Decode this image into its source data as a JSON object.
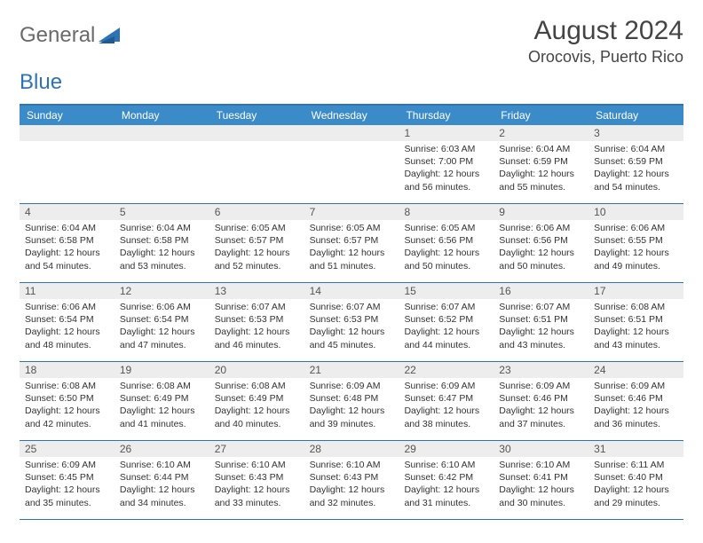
{
  "brand": {
    "general": "General",
    "blue": "Blue"
  },
  "header": {
    "month": "August 2024",
    "location": "Orocovis, Puerto Rico"
  },
  "colors": {
    "accent": "#3b8bc9",
    "border": "#2e74b5",
    "daybar": "#ededed",
    "text": "#333333"
  },
  "dayNames": [
    "Sunday",
    "Monday",
    "Tuesday",
    "Wednesday",
    "Thursday",
    "Friday",
    "Saturday"
  ],
  "weeks": [
    [
      {
        "n": "",
        "sr": "",
        "ss": "",
        "dl": ""
      },
      {
        "n": "",
        "sr": "",
        "ss": "",
        "dl": ""
      },
      {
        "n": "",
        "sr": "",
        "ss": "",
        "dl": ""
      },
      {
        "n": "",
        "sr": "",
        "ss": "",
        "dl": ""
      },
      {
        "n": "1",
        "sr": "Sunrise: 6:03 AM",
        "ss": "Sunset: 7:00 PM",
        "dl": "Daylight: 12 hours and 56 minutes."
      },
      {
        "n": "2",
        "sr": "Sunrise: 6:04 AM",
        "ss": "Sunset: 6:59 PM",
        "dl": "Daylight: 12 hours and 55 minutes."
      },
      {
        "n": "3",
        "sr": "Sunrise: 6:04 AM",
        "ss": "Sunset: 6:59 PM",
        "dl": "Daylight: 12 hours and 54 minutes."
      }
    ],
    [
      {
        "n": "4",
        "sr": "Sunrise: 6:04 AM",
        "ss": "Sunset: 6:58 PM",
        "dl": "Daylight: 12 hours and 54 minutes."
      },
      {
        "n": "5",
        "sr": "Sunrise: 6:04 AM",
        "ss": "Sunset: 6:58 PM",
        "dl": "Daylight: 12 hours and 53 minutes."
      },
      {
        "n": "6",
        "sr": "Sunrise: 6:05 AM",
        "ss": "Sunset: 6:57 PM",
        "dl": "Daylight: 12 hours and 52 minutes."
      },
      {
        "n": "7",
        "sr": "Sunrise: 6:05 AM",
        "ss": "Sunset: 6:57 PM",
        "dl": "Daylight: 12 hours and 51 minutes."
      },
      {
        "n": "8",
        "sr": "Sunrise: 6:05 AM",
        "ss": "Sunset: 6:56 PM",
        "dl": "Daylight: 12 hours and 50 minutes."
      },
      {
        "n": "9",
        "sr": "Sunrise: 6:06 AM",
        "ss": "Sunset: 6:56 PM",
        "dl": "Daylight: 12 hours and 50 minutes."
      },
      {
        "n": "10",
        "sr": "Sunrise: 6:06 AM",
        "ss": "Sunset: 6:55 PM",
        "dl": "Daylight: 12 hours and 49 minutes."
      }
    ],
    [
      {
        "n": "11",
        "sr": "Sunrise: 6:06 AM",
        "ss": "Sunset: 6:54 PM",
        "dl": "Daylight: 12 hours and 48 minutes."
      },
      {
        "n": "12",
        "sr": "Sunrise: 6:06 AM",
        "ss": "Sunset: 6:54 PM",
        "dl": "Daylight: 12 hours and 47 minutes."
      },
      {
        "n": "13",
        "sr": "Sunrise: 6:07 AM",
        "ss": "Sunset: 6:53 PM",
        "dl": "Daylight: 12 hours and 46 minutes."
      },
      {
        "n": "14",
        "sr": "Sunrise: 6:07 AM",
        "ss": "Sunset: 6:53 PM",
        "dl": "Daylight: 12 hours and 45 minutes."
      },
      {
        "n": "15",
        "sr": "Sunrise: 6:07 AM",
        "ss": "Sunset: 6:52 PM",
        "dl": "Daylight: 12 hours and 44 minutes."
      },
      {
        "n": "16",
        "sr": "Sunrise: 6:07 AM",
        "ss": "Sunset: 6:51 PM",
        "dl": "Daylight: 12 hours and 43 minutes."
      },
      {
        "n": "17",
        "sr": "Sunrise: 6:08 AM",
        "ss": "Sunset: 6:51 PM",
        "dl": "Daylight: 12 hours and 43 minutes."
      }
    ],
    [
      {
        "n": "18",
        "sr": "Sunrise: 6:08 AM",
        "ss": "Sunset: 6:50 PM",
        "dl": "Daylight: 12 hours and 42 minutes."
      },
      {
        "n": "19",
        "sr": "Sunrise: 6:08 AM",
        "ss": "Sunset: 6:49 PM",
        "dl": "Daylight: 12 hours and 41 minutes."
      },
      {
        "n": "20",
        "sr": "Sunrise: 6:08 AM",
        "ss": "Sunset: 6:49 PM",
        "dl": "Daylight: 12 hours and 40 minutes."
      },
      {
        "n": "21",
        "sr": "Sunrise: 6:09 AM",
        "ss": "Sunset: 6:48 PM",
        "dl": "Daylight: 12 hours and 39 minutes."
      },
      {
        "n": "22",
        "sr": "Sunrise: 6:09 AM",
        "ss": "Sunset: 6:47 PM",
        "dl": "Daylight: 12 hours and 38 minutes."
      },
      {
        "n": "23",
        "sr": "Sunrise: 6:09 AM",
        "ss": "Sunset: 6:46 PM",
        "dl": "Daylight: 12 hours and 37 minutes."
      },
      {
        "n": "24",
        "sr": "Sunrise: 6:09 AM",
        "ss": "Sunset: 6:46 PM",
        "dl": "Daylight: 12 hours and 36 minutes."
      }
    ],
    [
      {
        "n": "25",
        "sr": "Sunrise: 6:09 AM",
        "ss": "Sunset: 6:45 PM",
        "dl": "Daylight: 12 hours and 35 minutes."
      },
      {
        "n": "26",
        "sr": "Sunrise: 6:10 AM",
        "ss": "Sunset: 6:44 PM",
        "dl": "Daylight: 12 hours and 34 minutes."
      },
      {
        "n": "27",
        "sr": "Sunrise: 6:10 AM",
        "ss": "Sunset: 6:43 PM",
        "dl": "Daylight: 12 hours and 33 minutes."
      },
      {
        "n": "28",
        "sr": "Sunrise: 6:10 AM",
        "ss": "Sunset: 6:43 PM",
        "dl": "Daylight: 12 hours and 32 minutes."
      },
      {
        "n": "29",
        "sr": "Sunrise: 6:10 AM",
        "ss": "Sunset: 6:42 PM",
        "dl": "Daylight: 12 hours and 31 minutes."
      },
      {
        "n": "30",
        "sr": "Sunrise: 6:10 AM",
        "ss": "Sunset: 6:41 PM",
        "dl": "Daylight: 12 hours and 30 minutes."
      },
      {
        "n": "31",
        "sr": "Sunrise: 6:11 AM",
        "ss": "Sunset: 6:40 PM",
        "dl": "Daylight: 12 hours and 29 minutes."
      }
    ]
  ]
}
